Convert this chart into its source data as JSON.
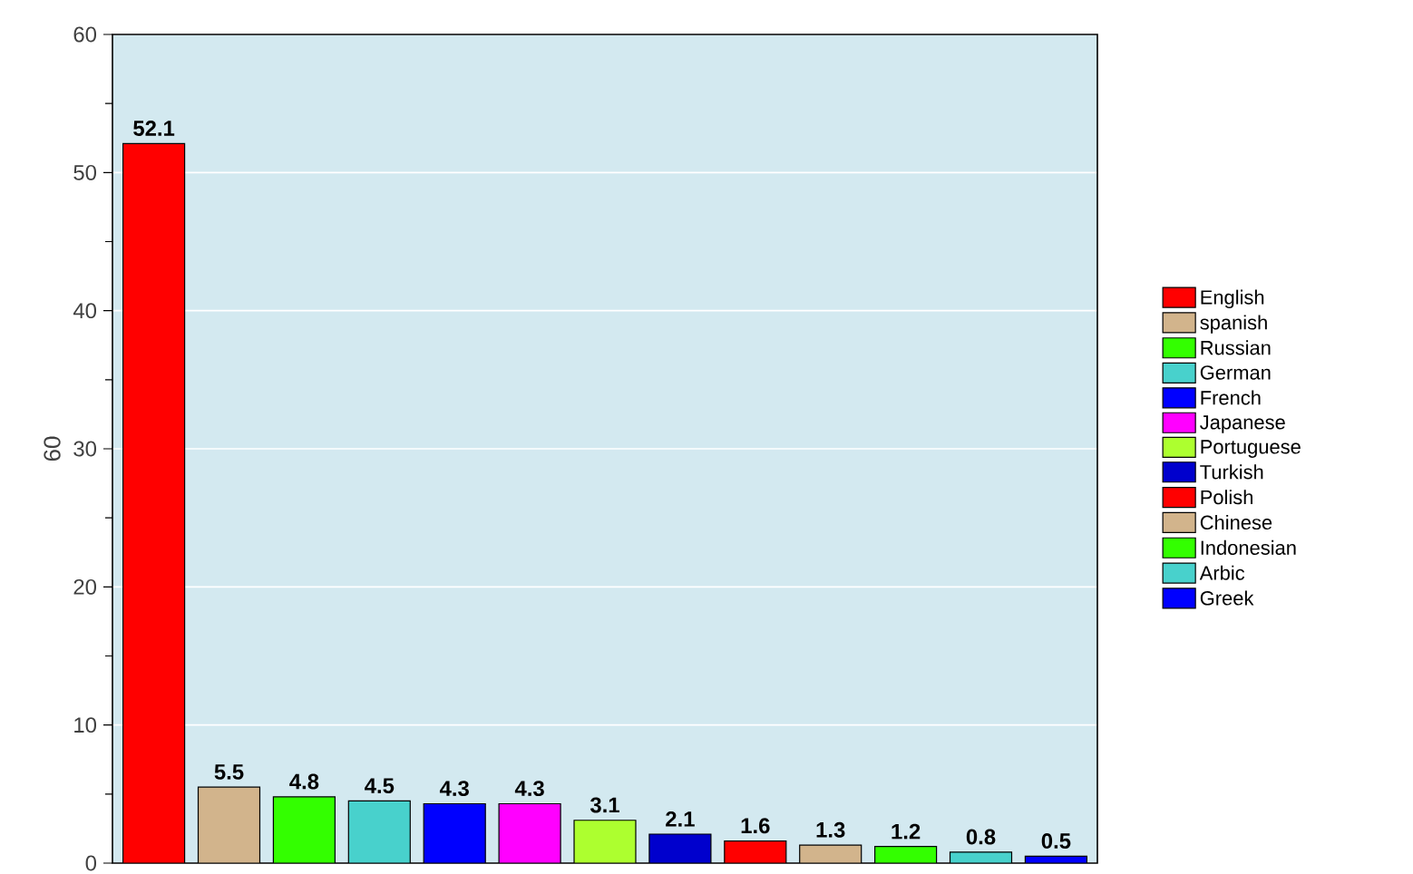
{
  "chart_data": {
    "type": "bar",
    "ylabel": "60",
    "categories": [
      null,
      null,
      null,
      null,
      null,
      null,
      null,
      null,
      null,
      null,
      null,
      null,
      null
    ],
    "series": [
      {
        "name": "English",
        "color": "#ff0000",
        "values": [
          52.1,
          null,
          null,
          null,
          null,
          null,
          null,
          null,
          null,
          null,
          null,
          null,
          null
        ]
      },
      {
        "name": "spanish",
        "color": "#d2b48c",
        "values": [
          null,
          5.5,
          null,
          null,
          null,
          null,
          null,
          null,
          null,
          null,
          null,
          null,
          null
        ]
      },
      {
        "name": "Russian",
        "color": "#33ff00",
        "values": [
          null,
          null,
          4.8,
          null,
          null,
          null,
          null,
          null,
          null,
          null,
          null,
          null,
          null
        ]
      },
      {
        "name": "German",
        "color": "#48d1cc",
        "values": [
          null,
          null,
          null,
          4.5,
          null,
          null,
          null,
          null,
          null,
          null,
          null,
          null,
          null
        ]
      },
      {
        "name": "French",
        "color": "#0000ff",
        "values": [
          null,
          null,
          null,
          null,
          4.3,
          null,
          null,
          null,
          null,
          null,
          null,
          null,
          null
        ]
      },
      {
        "name": "Japanese",
        "color": "#ff00ff",
        "values": [
          null,
          null,
          null,
          null,
          null,
          4.3,
          null,
          null,
          null,
          null,
          null,
          null,
          null
        ]
      },
      {
        "name": "Portuguese",
        "color": "#adff2f",
        "values": [
          null,
          null,
          null,
          null,
          null,
          null,
          3.1,
          null,
          null,
          null,
          null,
          null,
          null
        ]
      },
      {
        "name": "Turkish",
        "color": "#0000cd",
        "values": [
          null,
          null,
          null,
          null,
          null,
          null,
          null,
          2.1,
          null,
          null,
          null,
          null,
          null
        ]
      },
      {
        "name": "Polish",
        "color": "#ff0000",
        "values": [
          null,
          null,
          null,
          null,
          null,
          null,
          null,
          null,
          1.6,
          null,
          null,
          null,
          null
        ]
      },
      {
        "name": "Chinese",
        "color": "#d2b48c",
        "values": [
          null,
          null,
          null,
          null,
          null,
          null,
          null,
          null,
          null,
          1.3,
          null,
          null,
          null
        ]
      },
      {
        "name": "Indonesian",
        "color": "#33ff00",
        "values": [
          null,
          null,
          null,
          null,
          null,
          null,
          null,
          null,
          null,
          null,
          1.2,
          null,
          null
        ]
      },
      {
        "name": "Arbic",
        "color": "#48d1cc",
        "values": [
          null,
          null,
          null,
          null,
          null,
          null,
          null,
          null,
          null,
          null,
          null,
          0.8,
          null
        ]
      },
      {
        "name": "Greek",
        "color": "#0000ff",
        "values": [
          null,
          null,
          null,
          null,
          null,
          null,
          null,
          null,
          null,
          null,
          null,
          null,
          0.5
        ]
      }
    ],
    "ylim": [
      0,
      60
    ],
    "yticks": [
      0,
      {
        "value": 5,
        "label": null
      },
      10,
      {
        "value": 15,
        "label": null
      },
      20,
      {
        "value": 25,
        "label": null
      },
      30,
      {
        "value": 35,
        "label": null
      },
      40,
      {
        "value": 45,
        "label": null
      },
      50,
      {
        "value": 55,
        "label": null
      },
      60
    ],
    "grid": "y",
    "legend": "right",
    "data_labels": true
  }
}
